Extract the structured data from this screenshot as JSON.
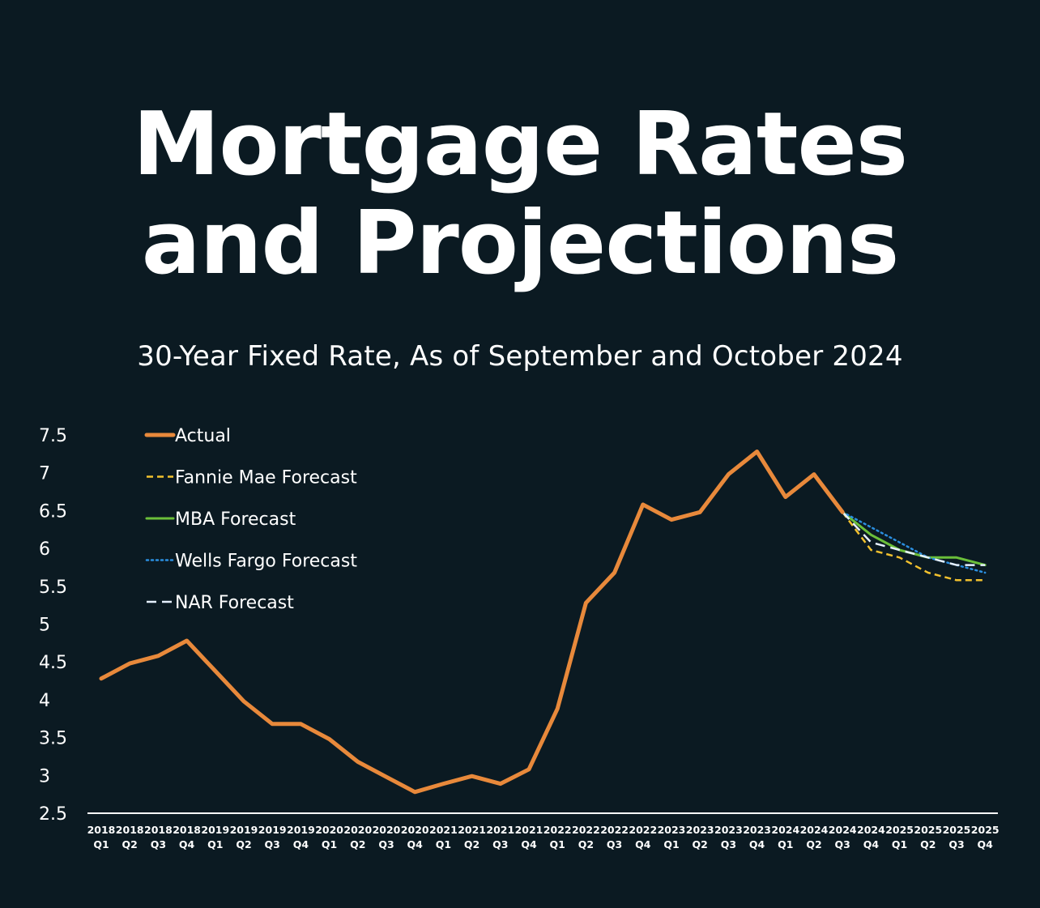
{
  "header": {
    "title_line1": "Mortgage Rates",
    "title_line2": "and Projections",
    "subtitle": "30-Year Fixed Rate, As of September and October 2024"
  },
  "colors": {
    "background": "#0b1a22",
    "actual": "#e8893b",
    "fannie_mae": "#f2c12e",
    "mba": "#6bbf3a",
    "wells_fargo": "#2b8fe0",
    "nar": "#e6f0ff",
    "text": "#ffffff"
  },
  "chart_data": {
    "type": "line",
    "ylim": [
      2.5,
      7.5
    ],
    "yticks": [
      "2.5",
      "3",
      "3.5",
      "4",
      "4.5",
      "5",
      "5.5",
      "6",
      "6.5",
      "7",
      "7.5"
    ],
    "grid": false,
    "legend_position": "top-left",
    "categories": [
      [
        "2018",
        "Q1"
      ],
      [
        "2018",
        "Q2"
      ],
      [
        "2018",
        "Q3"
      ],
      [
        "2018",
        "Q4"
      ],
      [
        "2019",
        "Q1"
      ],
      [
        "2019",
        "Q2"
      ],
      [
        "2019",
        "Q3"
      ],
      [
        "2019",
        "Q4"
      ],
      [
        "2020",
        "Q1"
      ],
      [
        "2020",
        "Q2"
      ],
      [
        "2020",
        "Q3"
      ],
      [
        "2020",
        "Q4"
      ],
      [
        "2021",
        "Q1"
      ],
      [
        "2021",
        "Q2"
      ],
      [
        "2021",
        "Q3"
      ],
      [
        "2021",
        "Q4"
      ],
      [
        "2022",
        "Q1"
      ],
      [
        "2022",
        "Q2"
      ],
      [
        "2022",
        "Q3"
      ],
      [
        "2022",
        "Q4"
      ],
      [
        "2023",
        "Q1"
      ],
      [
        "2023",
        "Q2"
      ],
      [
        "2023",
        "Q3"
      ],
      [
        "2023",
        "Q4"
      ],
      [
        "2024",
        "Q1"
      ],
      [
        "2024",
        "Q2"
      ],
      [
        "2024",
        "Q3"
      ],
      [
        "2024",
        "Q4"
      ],
      [
        "2025",
        "Q1"
      ],
      [
        "2025",
        "Q2"
      ],
      [
        "2025",
        "Q3"
      ],
      [
        "2025",
        "Q4"
      ]
    ],
    "series": [
      {
        "name": "Actual",
        "style": "solid-thick",
        "color": "#e8893b",
        "values": [
          4.28,
          4.48,
          4.58,
          4.78,
          4.38,
          3.98,
          3.68,
          3.68,
          3.48,
          3.18,
          2.98,
          2.78,
          2.89,
          2.99,
          2.89,
          3.08,
          3.88,
          5.28,
          5.68,
          6.58,
          6.38,
          6.48,
          6.98,
          7.28,
          6.68,
          6.98,
          6.48,
          null,
          null,
          null,
          null,
          null
        ]
      },
      {
        "name": "Fannie Mae Forecast",
        "style": "dashed",
        "color": "#f2c12e",
        "values": [
          null,
          null,
          null,
          null,
          null,
          null,
          null,
          null,
          null,
          null,
          null,
          null,
          null,
          null,
          null,
          null,
          null,
          null,
          null,
          null,
          null,
          null,
          null,
          null,
          null,
          null,
          6.48,
          5.98,
          5.88,
          5.68,
          5.58,
          5.58
        ]
      },
      {
        "name": "MBA Forecast",
        "style": "solid",
        "color": "#6bbf3a",
        "values": [
          null,
          null,
          null,
          null,
          null,
          null,
          null,
          null,
          null,
          null,
          null,
          null,
          null,
          null,
          null,
          null,
          null,
          null,
          null,
          null,
          null,
          null,
          null,
          null,
          null,
          null,
          6.48,
          6.18,
          5.98,
          5.88,
          5.88,
          5.78
        ]
      },
      {
        "name": "Wells Fargo Forecast",
        "style": "dotted",
        "color": "#2b8fe0",
        "values": [
          null,
          null,
          null,
          null,
          null,
          null,
          null,
          null,
          null,
          null,
          null,
          null,
          null,
          null,
          null,
          null,
          null,
          null,
          null,
          null,
          null,
          null,
          null,
          null,
          null,
          null,
          6.48,
          6.28,
          6.08,
          5.88,
          5.78,
          5.68
        ]
      },
      {
        "name": "NAR Forecast",
        "style": "long-dash",
        "color": "#e6f0ff",
        "values": [
          null,
          null,
          null,
          null,
          null,
          null,
          null,
          null,
          null,
          null,
          null,
          null,
          null,
          null,
          null,
          null,
          null,
          null,
          null,
          null,
          null,
          null,
          null,
          null,
          null,
          null,
          6.48,
          6.08,
          5.98,
          5.88,
          5.78,
          5.78
        ]
      }
    ]
  }
}
